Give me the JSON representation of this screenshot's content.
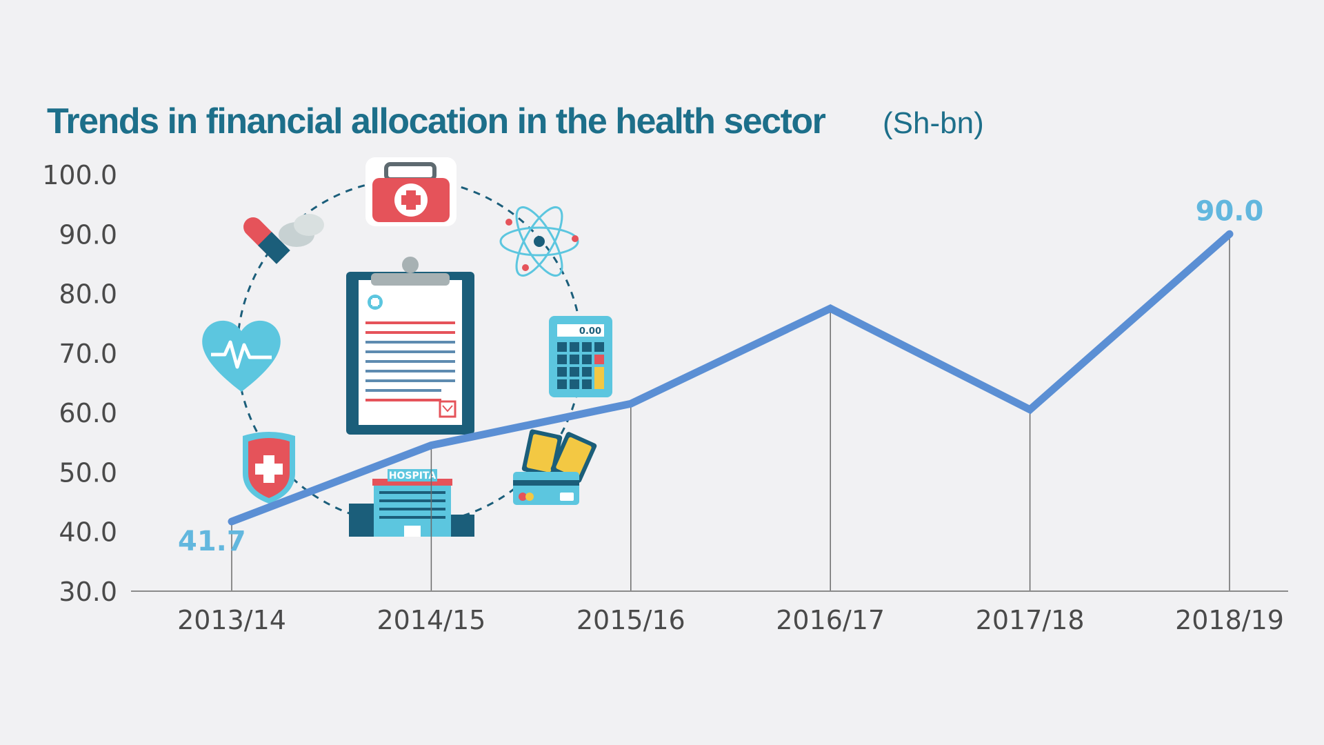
{
  "colors": {
    "background": "#f1f1f3",
    "title": "#1d6f8a",
    "line": "#5b8fd4",
    "data_label": "#62b7de",
    "axis": "#8a8a8a",
    "tick_text": "#4a4a4a",
    "icon_red": "#e5535a",
    "icon_teal": "#5cc6df",
    "icon_navy": "#1b5e7a",
    "icon_yellow": "#f3c843"
  },
  "icons": [
    "first-aid-kit-icon",
    "atom-icon",
    "calculator-icon",
    "money-card-icon",
    "hospital-icon",
    "shield-cross-icon",
    "heart-pulse-icon",
    "pills-icon",
    "clipboard-icon"
  ],
  "icon_texts": {
    "calculator_display": "0.00",
    "hospital_sign": "HOSPITA"
  },
  "chart_data": {
    "type": "line",
    "title": "Trends in financial allocation in the health sector",
    "title_unit": "(Sh-bn)",
    "categories": [
      "2013/14",
      "2014/15",
      "2015/16",
      "2016/17",
      "2017/18",
      "2018/19"
    ],
    "series": [
      {
        "values": [
          41.7,
          54.5,
          61.5,
          77.5,
          60.5,
          90.0
        ]
      }
    ],
    "ylim": [
      30,
      100
    ],
    "yticks": [
      "100.0",
      "90.0",
      "80.0",
      "70.0",
      "60.0",
      "50.0",
      "40.0",
      "30.0"
    ],
    "data_labels": [
      {
        "index": 0,
        "text": "41.7"
      },
      {
        "index": 5,
        "text": "90.0"
      }
    ],
    "grid": false,
    "drop_lines": true,
    "xlabel": "",
    "ylabel": ""
  }
}
